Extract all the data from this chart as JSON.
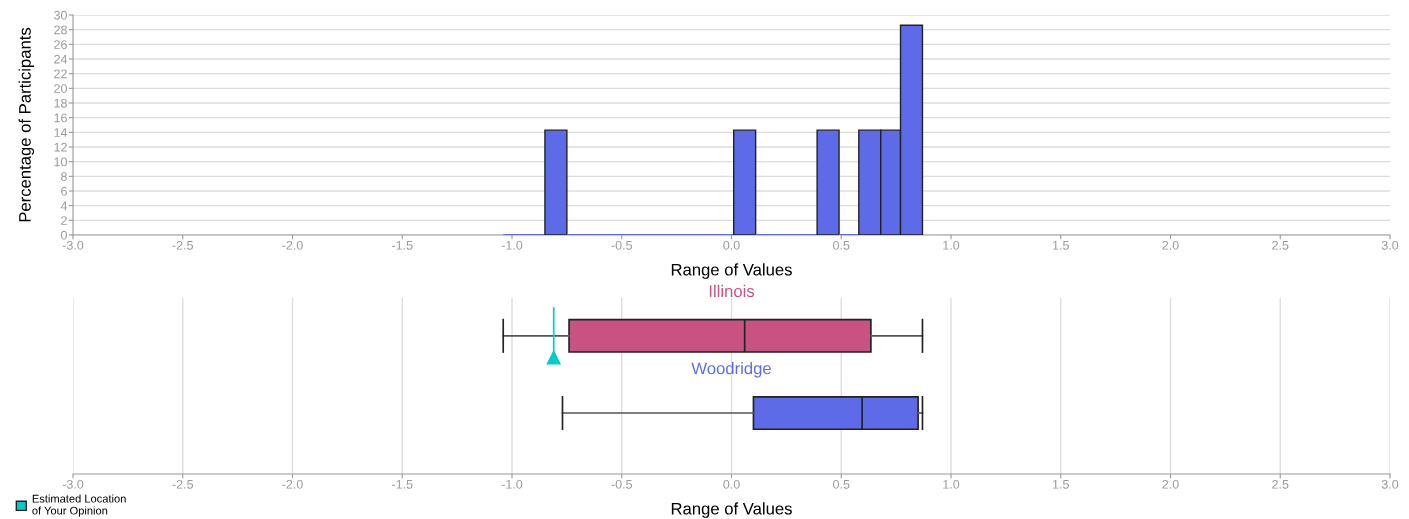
{
  "chart_data": [
    {
      "type": "histogram",
      "xlabel": "Range of Values",
      "ylabel": "Percentage of Participants",
      "bins": [
        -1.04,
        -0.85,
        -0.75,
        0.01,
        0.11,
        0.39,
        0.49,
        0.58,
        0.68,
        0.77,
        0.87
      ],
      "values": [
        0,
        14.3,
        0,
        14.3,
        0,
        14.3,
        0,
        14.3,
        14.3,
        28.6
      ],
      "color": "#5d6be8",
      "grid": "y",
      "xlim": [
        -3,
        3
      ],
      "xticks": [
        {
          "value": -3,
          "label": "-3.0"
        },
        {
          "value": -2.5,
          "label": "-2.5"
        },
        {
          "value": -2,
          "label": "-2.0"
        },
        {
          "value": -1.5,
          "label": "-1.5"
        },
        {
          "value": -1,
          "label": "-1.0"
        },
        {
          "value": -0.5,
          "label": "-0.5"
        },
        {
          "value": 0,
          "label": "0.0"
        },
        {
          "value": 0.5,
          "label": "0.5"
        },
        {
          "value": 1,
          "label": "1.0"
        },
        {
          "value": 1.5,
          "label": "1.5"
        },
        {
          "value": 2,
          "label": "2.0"
        },
        {
          "value": 2.5,
          "label": "2.5"
        },
        {
          "value": 3,
          "label": "3.0"
        }
      ],
      "ylim": [
        0,
        30
      ],
      "yticks": [
        0,
        2,
        4,
        6,
        8,
        10,
        12,
        14,
        16,
        18,
        20,
        22,
        24,
        26,
        28,
        30
      ]
    },
    {
      "type": "box",
      "orientation": "horizontal",
      "xlabel": "Range of Values",
      "categories": [
        null
      ],
      "series": [
        {
          "name": "Illinois",
          "color": "#c85383",
          "boxes": [
            {
              "low": -1.04,
              "q1": -0.74,
              "median": 0.06,
              "q3": 0.635,
              "high": 0.87
            }
          ]
        },
        {
          "name": "Woodridge",
          "color": "#5d6be8",
          "boxes": [
            {
              "low": -0.77,
              "q1": 0.1,
              "median": 0.595,
              "q3": 0.85,
              "high": 0.87
            }
          ]
        }
      ],
      "ref_lines": [
        {
          "axis": "x",
          "value": -0.81,
          "label": "Estimated Location\nof Your Opinion",
          "color": "#00cccc"
        }
      ],
      "legend": "bottom left",
      "grid": "x",
      "tick_labels": "x",
      "xlim": [
        -3,
        3
      ],
      "xticks": [
        {
          "value": -3,
          "label": "-3.0"
        },
        {
          "value": -2.5,
          "label": "-2.5"
        },
        {
          "value": -2,
          "label": "-2.0"
        },
        {
          "value": -1.5,
          "label": "-1.5"
        },
        {
          "value": -1,
          "label": "-1.0"
        },
        {
          "value": -0.5,
          "label": "-0.5"
        },
        {
          "value": 0,
          "label": "0.0"
        },
        {
          "value": 0.5,
          "label": "0.5"
        },
        {
          "value": 1,
          "label": "1.0"
        },
        {
          "value": 1.5,
          "label": "1.5"
        },
        {
          "value": 2,
          "label": "2.0"
        },
        {
          "value": 2.5,
          "label": "2.5"
        },
        {
          "value": 3,
          "label": "3.0"
        }
      ]
    }
  ]
}
